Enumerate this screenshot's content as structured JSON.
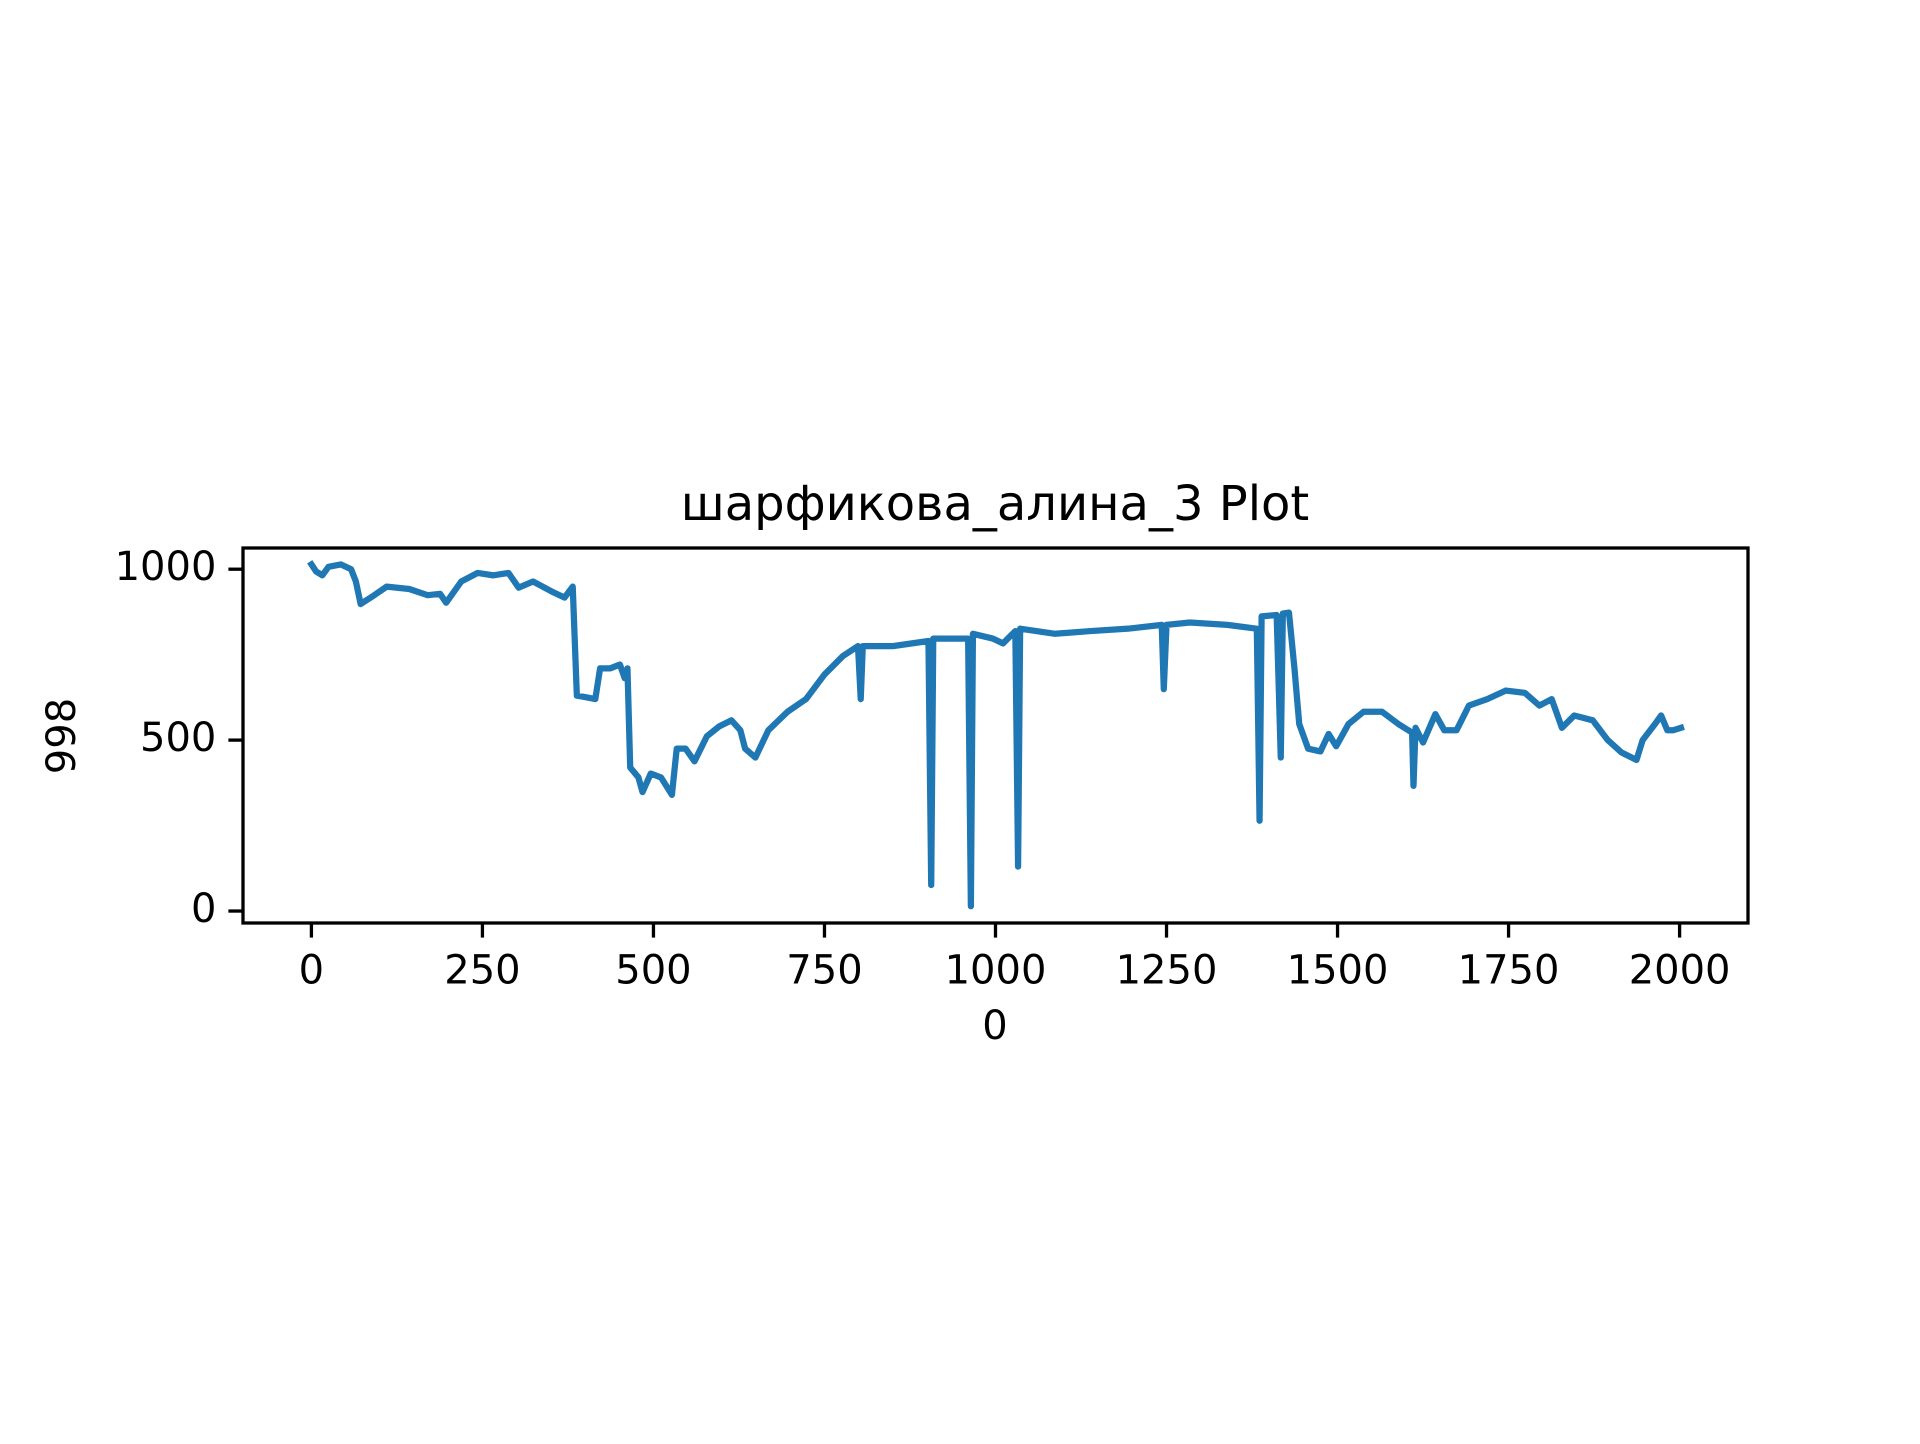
{
  "chart_data": {
    "type": "line",
    "title": "шарфикова_алина_3 Plot",
    "x_label": "0",
    "y_label": "998",
    "color": "#1f77b4",
    "x": [
      0,
      7,
      16,
      25,
      43,
      58,
      65,
      72,
      89,
      110,
      143,
      170,
      188,
      197,
      219,
      243,
      266,
      288,
      303,
      324,
      351,
      370,
      382,
      388,
      397,
      415,
      422,
      437,
      451,
      458,
      462,
      466,
      478,
      484,
      496,
      511,
      527,
      534,
      547,
      560,
      578,
      596,
      614,
      627,
      634,
      649,
      668,
      696,
      723,
      750,
      777,
      799,
      803,
      806,
      850,
      902,
      906,
      909,
      960,
      964,
      967,
      996,
      1011,
      1029,
      1033,
      1036,
      1087,
      1139,
      1194,
      1243,
      1246,
      1250,
      1284,
      1339,
      1382,
      1386,
      1389,
      1411,
      1417,
      1420,
      1429,
      1437,
      1444,
      1457,
      1475,
      1487,
      1498,
      1516,
      1538,
      1565,
      1589,
      1609,
      1611,
      1614,
      1625,
      1643,
      1656,
      1674,
      1692,
      1719,
      1746,
      1774,
      1795,
      1813,
      1828,
      1846,
      1873,
      1895,
      1915,
      1937,
      1946,
      1964,
      1973,
      1982,
      1991,
      2002
    ],
    "values": [
      1014,
      993,
      982,
      1007,
      1014,
      1000,
      964,
      898,
      920,
      949,
      942,
      924,
      928,
      902,
      964,
      989,
      982,
      989,
      946,
      964,
      935,
      917,
      949,
      630,
      627,
      620,
      710,
      710,
      721,
      681,
      710,
      420,
      391,
      348,
      402,
      391,
      340,
      475,
      475,
      438,
      511,
      540,
      558,
      529,
      475,
      449,
      529,
      583,
      620,
      692,
      746,
      775,
      620,
      775,
      775,
      790,
      76,
      797,
      797,
      14,
      811,
      797,
      783,
      819,
      130,
      826,
      811,
      819,
      826,
      837,
      649,
      837,
      844,
      837,
      826,
      264,
      862,
      866,
      449,
      870,
      873,
      710,
      547,
      475,
      467,
      518,
      482,
      547,
      583,
      583,
      547,
      522,
      366,
      536,
      493,
      576,
      529,
      529,
      601,
      620,
      645,
      638,
      601,
      620,
      536,
      572,
      558,
      500,
      464,
      442,
      500,
      547,
      572,
      529,
      529,
      536
    ],
    "xlim": [
      -100,
      2100
    ],
    "ylim": [
      -35,
      1062
    ],
    "xticks": [
      0,
      250,
      500,
      750,
      1000,
      1250,
      1500,
      1750,
      2000
    ],
    "yticks": [
      0,
      500,
      1000
    ]
  }
}
